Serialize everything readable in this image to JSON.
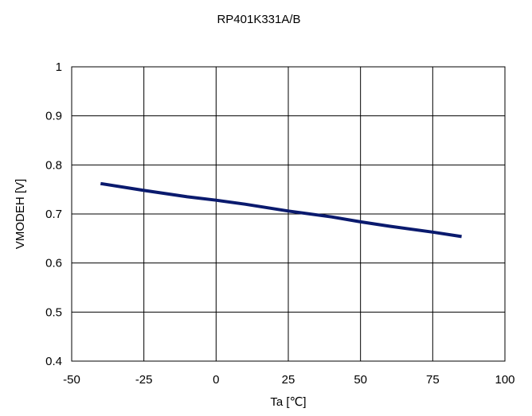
{
  "chart_data": {
    "type": "line",
    "title": "RP401K331A/B",
    "xlabel": "Ta [℃]",
    "ylabel": "VMODEH [V]",
    "xlim": [
      -50,
      100
    ],
    "ylim": [
      0.4,
      1
    ],
    "x_ticks": [
      "-50",
      "-25",
      "0",
      "25",
      "50",
      "75",
      "100"
    ],
    "y_ticks": [
      "0.4",
      "0.5",
      "0.6",
      "0.7",
      "0.8",
      "0.9",
      "1"
    ],
    "x_tick_values": [
      -50,
      -25,
      0,
      25,
      50,
      75,
      100
    ],
    "y_tick_values": [
      0.4,
      0.5,
      0.6,
      0.7,
      0.8,
      0.9,
      1
    ],
    "grid": true,
    "legend": "none",
    "series": [
      {
        "color": "#0a1a6e",
        "x": [
          -40,
          -25,
          -10,
          0,
          10,
          25,
          40,
          50,
          60,
          75,
          85
        ],
        "y": [
          0.762,
          0.748,
          0.735,
          0.728,
          0.72,
          0.706,
          0.694,
          0.684,
          0.675,
          0.663,
          0.654
        ]
      }
    ]
  }
}
